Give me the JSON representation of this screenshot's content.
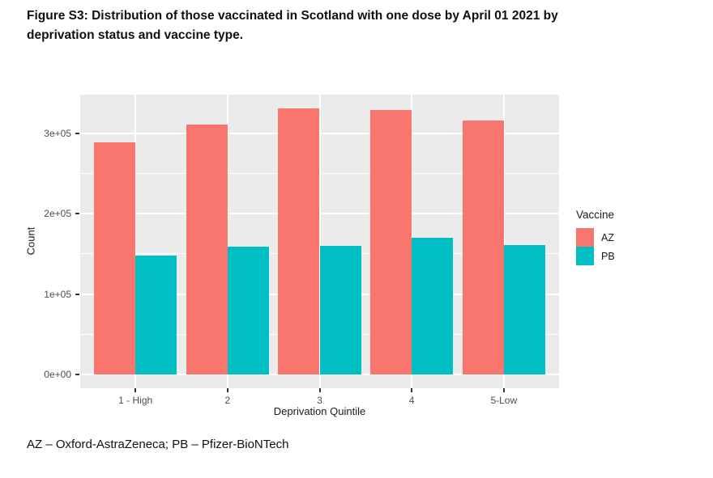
{
  "figure_caption": {
    "line1": "Figure S3: Distribution of those vaccinated in Scotland with one dose by April 01 2021 by",
    "line2": "deprivation status and vaccine type."
  },
  "footnote": "AZ – Oxford-AstraZeneca; PB – Pfizer-BioNTech",
  "chart_data": {
    "type": "bar",
    "title": "",
    "categories": [
      "1 - High",
      "2",
      "3",
      "4",
      "5-Low"
    ],
    "series": [
      {
        "name": "AZ",
        "color": "#F8766D",
        "values": [
          289000,
          311000,
          331000,
          329000,
          316000
        ]
      },
      {
        "name": "PB",
        "color": "#00BFC4",
        "values": [
          148000,
          159000,
          160000,
          170000,
          161000
        ]
      }
    ],
    "xlabel": "Deprivation Quintile",
    "ylabel": "Count",
    "y_ticks": [
      {
        "value": 0,
        "label": "0e+00"
      },
      {
        "value": 100000,
        "label": "1e+05"
      },
      {
        "value": 200000,
        "label": "2e+05"
      },
      {
        "value": 300000,
        "label": "3e+05"
      }
    ],
    "y_minor": [
      50000,
      150000,
      250000
    ],
    "ylim": [
      -17000,
      348000
    ],
    "bar_layout": "dodge",
    "grid": "on",
    "panel_bg": "#EBEBEB",
    "grid_color": "#FFFFFF",
    "legend": {
      "title": "Vaccine",
      "position": "right"
    }
  }
}
